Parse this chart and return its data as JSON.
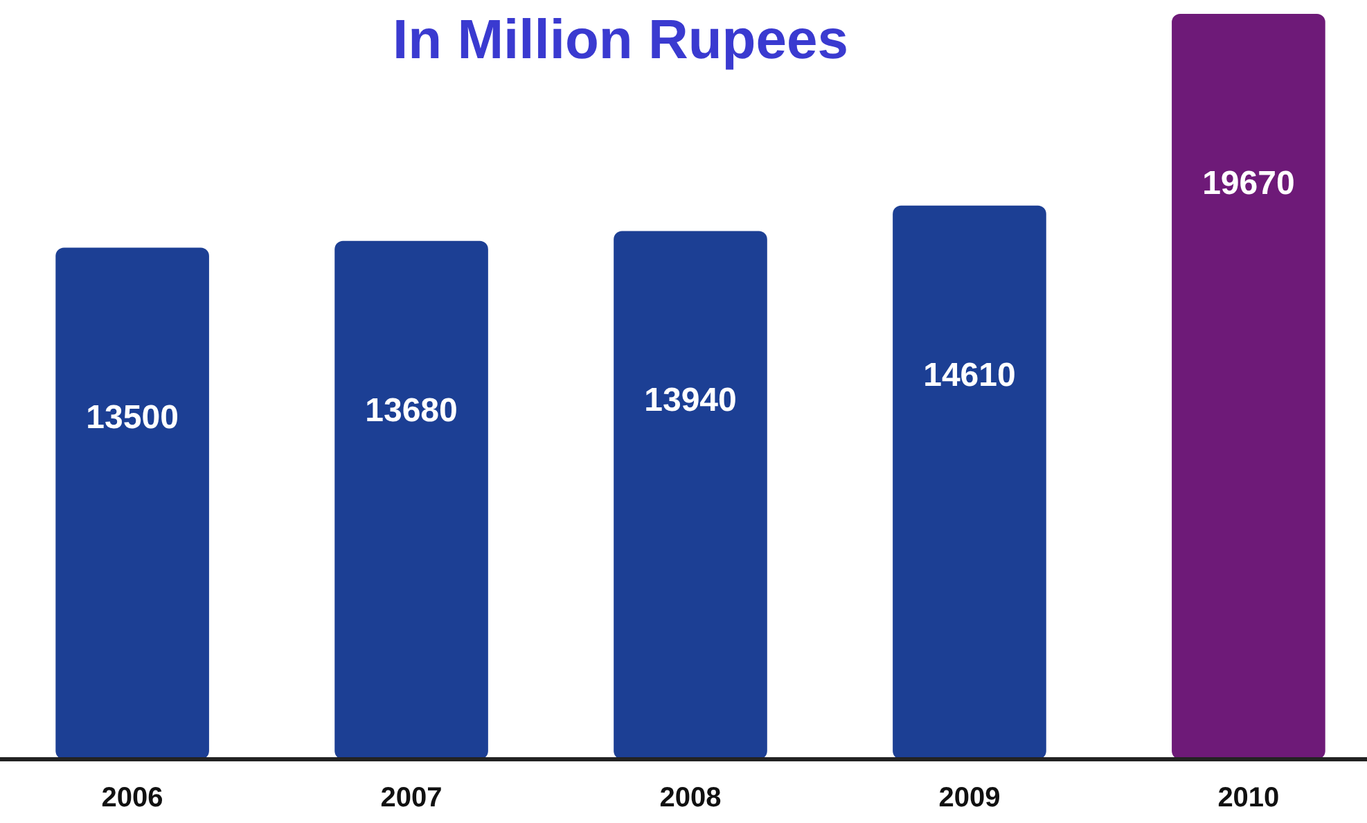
{
  "chart_data": {
    "type": "bar",
    "title": "In Million Rupees",
    "categories": [
      "2006",
      "2007",
      "2008",
      "2009",
      "2010"
    ],
    "values": [
      13500,
      13680,
      13940,
      14610,
      19670
    ],
    "colors": [
      "#1c3f94",
      "#1c3f94",
      "#1c3f94",
      "#1c3f94",
      "#6e1a78"
    ],
    "data_labels": true
  }
}
